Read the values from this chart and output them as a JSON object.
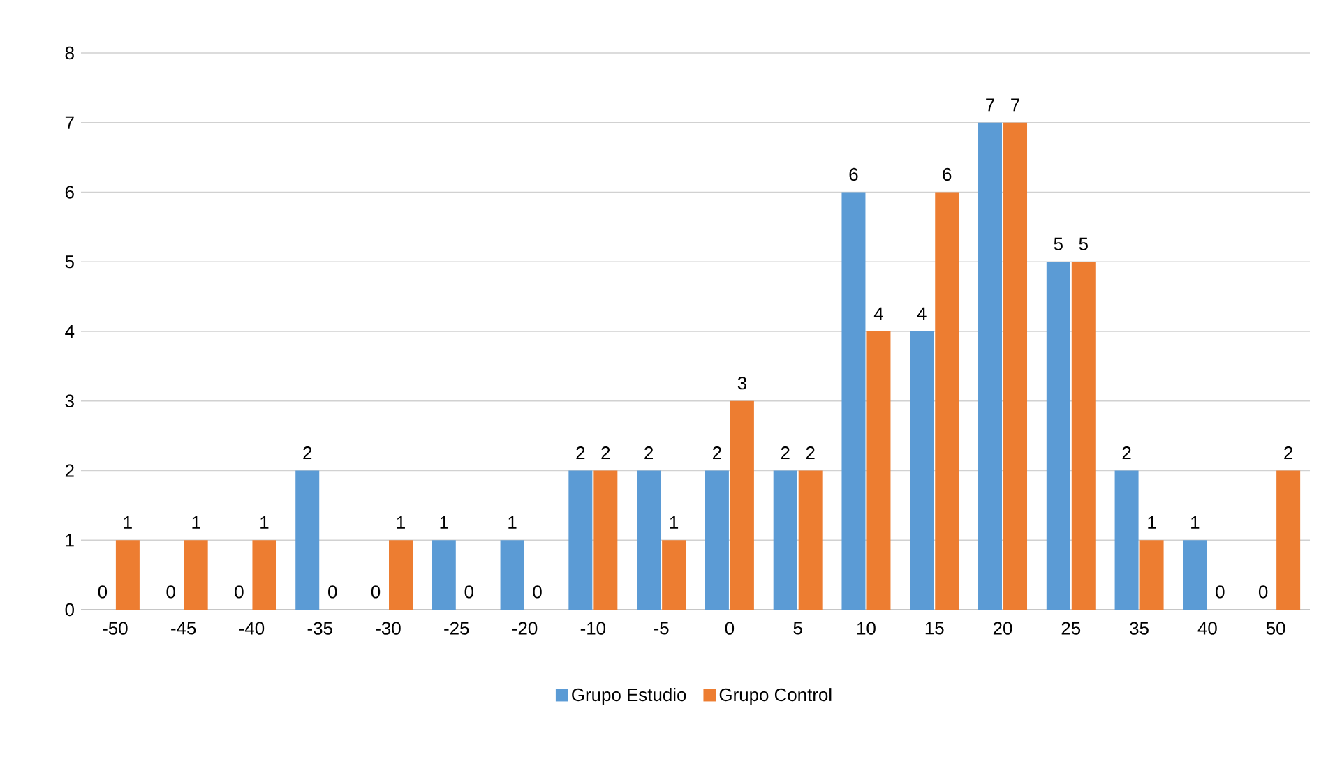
{
  "chart_data": {
    "type": "bar",
    "categories": [
      "-50",
      "-45",
      "-40",
      "-35",
      "-30",
      "-25",
      "-20",
      "-10",
      "-5",
      "0",
      "5",
      "10",
      "15",
      "20",
      "25",
      "35",
      "40",
      "50"
    ],
    "series": [
      {
        "name": "Grupo Estudio",
        "color": "#5b9bd5",
        "values": [
          0,
          0,
          0,
          2,
          0,
          1,
          1,
          2,
          2,
          2,
          2,
          6,
          4,
          7,
          5,
          2,
          1,
          0
        ]
      },
      {
        "name": "Grupo Control",
        "color": "#ed7d31",
        "values": [
          1,
          1,
          1,
          0,
          1,
          0,
          0,
          2,
          1,
          3,
          2,
          4,
          6,
          7,
          5,
          1,
          0,
          2
        ]
      }
    ],
    "ylim": [
      0,
      8
    ],
    "yticks": [
      0,
      1,
      2,
      3,
      4,
      5,
      6,
      7,
      8
    ],
    "grid": "y",
    "legend": "bottom",
    "data_labels": true
  }
}
